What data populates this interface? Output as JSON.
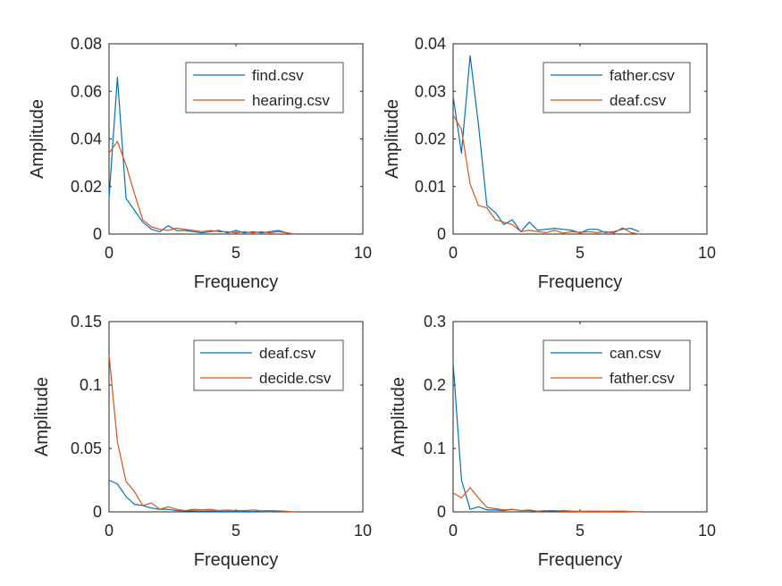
{
  "figure": {
    "background": "#ffffff"
  },
  "colors": {
    "series1": "#0072BD",
    "series2": "#D95319",
    "axis": "#262626",
    "legend_border": "#262626"
  },
  "chart_data": [
    {
      "type": "line",
      "title": "",
      "xlabel": "Frequency",
      "ylabel": "Amplitude",
      "xlim": [
        0,
        10
      ],
      "ylim": [
        0,
        0.08
      ],
      "xticks": [
        0,
        5,
        10
      ],
      "xtick_labels": [
        "0",
        "5",
        "10"
      ],
      "yticks": [
        0,
        0.02,
        0.04,
        0.06,
        0.08
      ],
      "ytick_labels": [
        "0",
        "0.02",
        "0.04",
        "0.06",
        "0.08"
      ],
      "grid": false,
      "legend_position": "top-right",
      "series": [
        {
          "name": "find.csv",
          "color": "#0072BD",
          "x": [
            0,
            0.33,
            0.67,
            1.0,
            1.33,
            1.67,
            2.0,
            2.33,
            2.67,
            3.0,
            3.33,
            3.67,
            4.0,
            4.33,
            4.67,
            5.0,
            5.33,
            5.67,
            6.0,
            6.33,
            6.67,
            7.0,
            7.33
          ],
          "y": [
            0.015,
            0.066,
            0.015,
            0.01,
            0.005,
            0.002,
            0.001,
            0.0035,
            0.0015,
            0.0015,
            0.001,
            0.0005,
            0.001,
            0.0015,
            0.0005,
            0.0015,
            0.0005,
            0.001,
            0.0005,
            0.001,
            0.0015,
            0.0005,
            0.0
          ]
        },
        {
          "name": "hearing.csv",
          "color": "#D95319",
          "x": [
            0,
            0.33,
            0.67,
            1.0,
            1.33,
            1.67,
            2.0,
            2.33,
            2.67,
            3.0,
            3.33,
            3.67,
            4.0,
            4.33,
            4.67,
            5.0,
            5.33,
            5.67,
            6.0,
            6.33,
            6.67,
            7.0,
            7.33
          ],
          "y": [
            0.034,
            0.039,
            0.029,
            0.017,
            0.006,
            0.003,
            0.002,
            0.0015,
            0.0025,
            0.002,
            0.0015,
            0.001,
            0.0015,
            0.001,
            0.001,
            0.0005,
            0.001,
            0.0005,
            0.001,
            0.0005,
            0.001,
            0.0005,
            0.0
          ]
        }
      ]
    },
    {
      "type": "line",
      "title": "",
      "xlabel": "Frequency",
      "ylabel": "Amplitude",
      "xlim": [
        0,
        10
      ],
      "ylim": [
        0,
        0.04
      ],
      "xticks": [
        0,
        5,
        10
      ],
      "xtick_labels": [
        "0",
        "5",
        "10"
      ],
      "yticks": [
        0,
        0.01,
        0.02,
        0.03,
        0.04
      ],
      "ytick_labels": [
        "0",
        "0.01",
        "0.02",
        "0.03",
        "0.04"
      ],
      "grid": false,
      "legend_position": "top-right",
      "series": [
        {
          "name": "father.csv",
          "color": "#0072BD",
          "x": [
            0,
            0.33,
            0.67,
            1.0,
            1.33,
            1.67,
            2.0,
            2.33,
            2.67,
            3.0,
            3.33,
            3.67,
            4.0,
            4.33,
            4.67,
            5.0,
            5.33,
            5.67,
            6.0,
            6.33,
            6.67,
            7.0,
            7.33
          ],
          "y": [
            0.029,
            0.017,
            0.0375,
            0.023,
            0.006,
            0.0045,
            0.002,
            0.003,
            0.0005,
            0.0025,
            0.0008,
            0.001,
            0.0012,
            0.001,
            0.0008,
            0.0002,
            0.001,
            0.001,
            0.0003,
            0.0005,
            0.001,
            0.0012,
            0.0005
          ]
        },
        {
          "name": "deaf.csv",
          "color": "#D95319",
          "x": [
            0,
            0.33,
            0.67,
            1.0,
            1.33,
            1.67,
            2.0,
            2.33,
            2.67,
            3.0,
            3.33,
            3.67,
            4.0,
            4.33,
            4.67,
            5.0,
            5.33,
            5.67,
            6.0,
            6.33,
            6.67,
            7.0,
            7.33
          ],
          "y": [
            0.025,
            0.022,
            0.0105,
            0.006,
            0.0055,
            0.003,
            0.0025,
            0.002,
            0.0005,
            0.0008,
            0.0005,
            0.0003,
            0.0008,
            0.0002,
            0.0005,
            0.0003,
            0.0005,
            0.0003,
            0.0005,
            0.0002,
            0.0013,
            0.0003,
            0.0
          ]
        }
      ]
    },
    {
      "type": "line",
      "title": "",
      "xlabel": "Frequency",
      "ylabel": "Amplitude",
      "xlim": [
        0,
        10
      ],
      "ylim": [
        0,
        0.15
      ],
      "xticks": [
        0,
        5,
        10
      ],
      "xtick_labels": [
        "0",
        "5",
        "10"
      ],
      "yticks": [
        0,
        0.05,
        0.1,
        0.15
      ],
      "ytick_labels": [
        "0",
        "0.05",
        "0.1",
        "0.15"
      ],
      "grid": false,
      "legend_position": "top-right",
      "series": [
        {
          "name": "deaf.csv",
          "color": "#0072BD",
          "x": [
            0,
            0.33,
            0.67,
            1.0,
            1.33,
            1.67,
            2.0,
            2.33,
            2.67,
            3.0,
            3.33,
            3.67,
            4.0,
            4.33,
            4.67,
            5.0,
            5.33,
            5.67,
            6.0,
            6.33,
            6.67,
            7.0,
            7.33
          ],
          "y": [
            0.025,
            0.022,
            0.012,
            0.006,
            0.005,
            0.003,
            0.002,
            0.002,
            0.001,
            0.0008,
            0.0008,
            0.0005,
            0.0008,
            0.0004,
            0.0005,
            0.0003,
            0.0005,
            0.0003,
            0.0004,
            0.0002,
            0.0005,
            0.0003,
            0.0
          ]
        },
        {
          "name": "decide.csv",
          "color": "#D95319",
          "x": [
            0,
            0.33,
            0.67,
            1.0,
            1.33,
            1.67,
            2.0,
            2.33,
            2.67,
            3.0,
            3.33,
            3.67,
            4.0,
            4.33,
            4.67,
            5.0,
            5.33,
            5.67,
            6.0,
            6.33,
            6.67,
            7.0,
            7.33
          ],
          "y": [
            0.124,
            0.055,
            0.024,
            0.016,
            0.005,
            0.007,
            0.002,
            0.004,
            0.002,
            0.001,
            0.002,
            0.0015,
            0.002,
            0.001,
            0.0015,
            0.001,
            0.001,
            0.0015,
            0.0008,
            0.001,
            0.0008,
            0.0005,
            0.0
          ]
        }
      ]
    },
    {
      "type": "line",
      "title": "",
      "xlabel": "Frequency",
      "ylabel": "Amplitude",
      "xlim": [
        0,
        10
      ],
      "ylim": [
        0,
        0.3
      ],
      "xticks": [
        0,
        5,
        10
      ],
      "xtick_labels": [
        "0",
        "5",
        "10"
      ],
      "yticks": [
        0,
        0.1,
        0.2,
        0.3
      ],
      "ytick_labels": [
        "0",
        "0.1",
        "0.2",
        "0.3"
      ],
      "grid": false,
      "legend_position": "top-right",
      "series": [
        {
          "name": "can.csv",
          "color": "#0072BD",
          "x": [
            0,
            0.33,
            0.67,
            1.0,
            1.33,
            1.67,
            2.0,
            2.33,
            2.67,
            3.0,
            3.33,
            3.67,
            4.0,
            4.33,
            4.67,
            5.0,
            5.33,
            5.67,
            6.0,
            6.33,
            6.67,
            7.0,
            7.33
          ],
          "y": [
            0.235,
            0.05,
            0.004,
            0.008,
            0.003,
            0.003,
            0.002,
            0.004,
            0.002,
            0.002,
            0.001,
            0.002,
            0.001,
            0.002,
            0.001,
            0.001,
            0.001,
            0.001,
            0.001,
            0.001,
            0.001,
            0.0005,
            0.0
          ]
        },
        {
          "name": "father.csv",
          "color": "#D95319",
          "x": [
            0,
            0.33,
            0.67,
            1.0,
            1.33,
            1.67,
            2.0,
            2.33,
            2.67,
            3.0,
            3.33,
            3.67,
            4.0,
            4.33,
            4.67,
            5.0,
            5.33,
            5.67,
            6.0,
            6.33,
            6.67,
            7.0,
            7.33
          ],
          "y": [
            0.03,
            0.022,
            0.038,
            0.022,
            0.007,
            0.005,
            0.003,
            0.004,
            0.002,
            0.003,
            0.001,
            0.002,
            0.002,
            0.001,
            0.001,
            0.0005,
            0.001,
            0.001,
            0.0005,
            0.001,
            0.001,
            0.0005,
            0.0
          ]
        }
      ]
    }
  ]
}
